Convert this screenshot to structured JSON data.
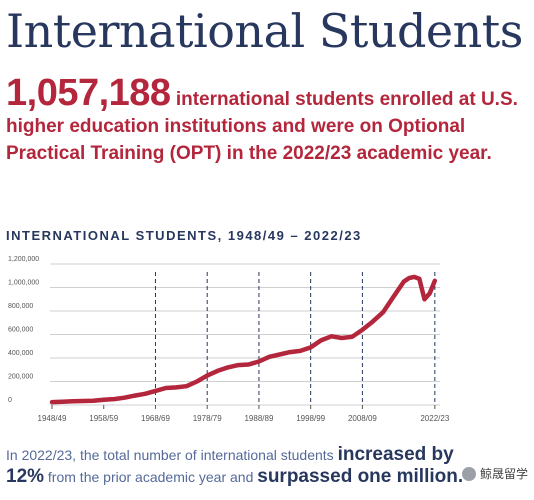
{
  "page": {
    "title": "International Students",
    "hero": {
      "number": "1,057,188",
      "text_1": "international students",
      "text_2": "enrolled at U.S. higher education institutions and were on Optional Practical Training (OPT) in the 2022/23 academic year."
    },
    "footnote": {
      "part_1": "In 2022/23, the total number of international students",
      "emph_1": "increased by 12%",
      "part_2": "from the prior academic year and",
      "emph_2": "surpassed one million."
    },
    "watermark": "鲸晟留学"
  },
  "colors": {
    "title": "#27375e",
    "accent": "#b3263c",
    "line": "#b3263c",
    "grid": "#cfcfcf",
    "dashed": "#27375e",
    "axis_text": "#555555"
  },
  "chart_data": {
    "type": "line",
    "title": "INTERNATIONAL STUDENTS, 1948/49 – 2022/23",
    "xlabel": "",
    "ylabel": "",
    "xlim": [
      1948,
      2023
    ],
    "ylim": [
      0,
      1200000
    ],
    "grid": true,
    "y_ticks": [
      {
        "value": 0,
        "label": "0"
      },
      {
        "value": 200000,
        "label": "200,000"
      },
      {
        "value": 400000,
        "label": "400,000"
      },
      {
        "value": 600000,
        "label": "600,000"
      },
      {
        "value": 800000,
        "label": "800,000"
      },
      {
        "value": 1000000,
        "label": "1,000,000"
      },
      {
        "value": 1200000,
        "label": "1,200,000"
      }
    ],
    "x_ticks": [
      {
        "value": 1948,
        "label": "1948/49"
      },
      {
        "value": 1958,
        "label": "1958/59"
      },
      {
        "value": 1968,
        "label": "1968/69"
      },
      {
        "value": 1978,
        "label": "1978/79"
      },
      {
        "value": 1988,
        "label": "1988/89"
      },
      {
        "value": 1998,
        "label": "1998/99"
      },
      {
        "value": 2008,
        "label": "2008/09"
      },
      {
        "value": 2022,
        "label": "2022/23"
      }
    ],
    "dashed_markers": [
      1968,
      1978,
      1988,
      1998,
      2008,
      2022
    ],
    "series": [
      {
        "x": [
          1948,
          1950,
          1952,
          1954,
          1956,
          1958,
          1960,
          1962,
          1964,
          1966,
          1968,
          1970,
          1972,
          1974,
          1976,
          1978,
          1980,
          1982,
          1984,
          1986,
          1988,
          1990,
          1992,
          1994,
          1996,
          1998,
          2000,
          2002,
          2004,
          2006,
          2008,
          2010,
          2012,
          2014,
          2016,
          2017,
          2018,
          2019,
          2020,
          2021,
          2022
        ],
        "values": [
          25000,
          28000,
          32000,
          34000,
          37000,
          45000,
          50000,
          62000,
          80000,
          95000,
          120000,
          145000,
          150000,
          160000,
          200000,
          250000,
          290000,
          320000,
          340000,
          345000,
          370000,
          410000,
          430000,
          450000,
          460000,
          490000,
          550000,
          585000,
          570000,
          580000,
          640000,
          710000,
          790000,
          920000,
          1050000,
          1080000,
          1090000,
          1075000,
          900000,
          950000,
          1057188
        ]
      }
    ]
  }
}
